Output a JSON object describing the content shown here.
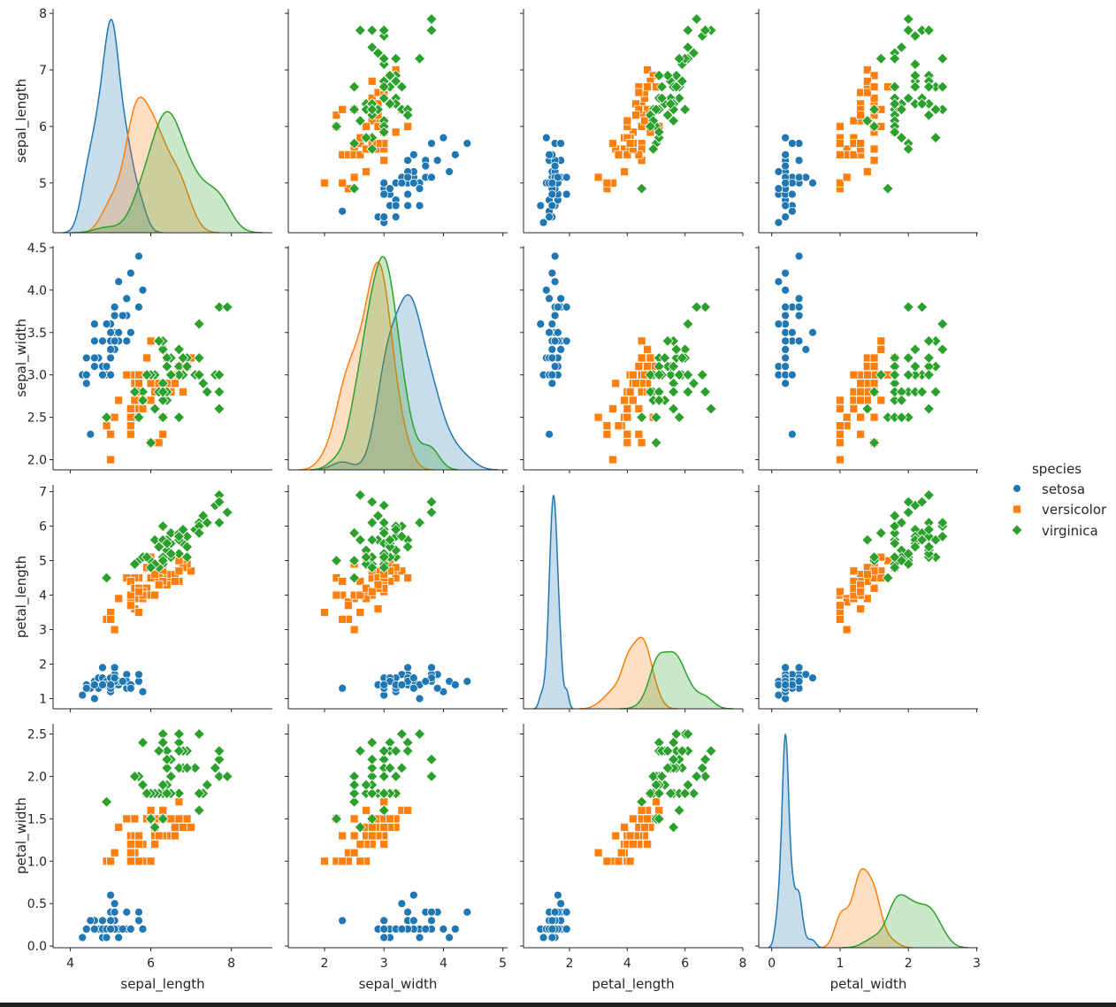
{
  "chart_data": {
    "type": "scatter",
    "kind": "pairplot",
    "diag_kind": "kde",
    "grid": false,
    "legend": {
      "title": "species",
      "placement": "right",
      "entries": [
        "setosa",
        "versicolor",
        "virginica"
      ]
    },
    "hue_colors": {
      "setosa": "#1f77b4",
      "versicolor": "#ff7f0e",
      "virginica": "#2ca02c"
    },
    "hue_markers": {
      "setosa": "circle",
      "versicolor": "square",
      "virginica": "diamond"
    },
    "variables": [
      "sepal_length",
      "sepal_width",
      "petal_length",
      "petal_width"
    ],
    "axes": {
      "sepal_length": {
        "label": "sepal_length",
        "xlim": [
          3.57,
          9.02
        ],
        "ylim": [
          4.12,
          8.08
        ],
        "xticks": [
          4,
          6,
          8
        ],
        "xtick_labels": [
          "4",
          "6",
          "8"
        ],
        "yticks": [
          5,
          6,
          7,
          8
        ],
        "ytick_labels": [
          "5",
          "6",
          "7",
          "8"
        ]
      },
      "sepal_width": {
        "label": "sepal_width",
        "xlim": [
          1.39,
          5.08
        ],
        "ylim": [
          1.88,
          4.52
        ],
        "xticks": [
          2,
          3,
          4,
          5
        ],
        "xtick_labels": [
          "2",
          "3",
          "4",
          "5"
        ],
        "yticks": [
          2.0,
          2.5,
          3.0,
          3.5,
          4.0,
          4.5
        ],
        "ytick_labels": [
          "2.0",
          "2.5",
          "3.0",
          "3.5",
          "4.0",
          "4.5"
        ]
      },
      "petal_length": {
        "label": "petal_length",
        "xlim": [
          0.41,
          8.0
        ],
        "ylim": [
          0.705,
          7.195
        ],
        "xticks": [
          2,
          4,
          6,
          8
        ],
        "xtick_labels": [
          "2",
          "4",
          "6",
          "8"
        ],
        "yticks": [
          1,
          2,
          3,
          4,
          5,
          6,
          7
        ],
        "ytick_labels": [
          "1",
          "2",
          "3",
          "4",
          "5",
          "6",
          "7"
        ]
      },
      "petal_width": {
        "label": "petal_width",
        "xlim": [
          -0.19,
          3.02
        ],
        "ylim": [
          -0.02,
          2.62
        ],
        "xticks": [
          0,
          1,
          2,
          3
        ],
        "xtick_labels": [
          "0",
          "1",
          "2",
          "3"
        ],
        "yticks": [
          0.0,
          0.5,
          1.0,
          1.5,
          2.0,
          2.5
        ],
        "ytick_labels": [
          "0.0",
          "0.5",
          "1.0",
          "1.5",
          "2.0",
          "2.5"
        ]
      }
    },
    "columns": [
      "sepal_length",
      "sepal_width",
      "petal_length",
      "petal_width"
    ],
    "data": {
      "setosa": [
        [
          5.1,
          3.5,
          1.4,
          0.2
        ],
        [
          4.9,
          3.0,
          1.4,
          0.2
        ],
        [
          4.7,
          3.2,
          1.3,
          0.2
        ],
        [
          4.6,
          3.1,
          1.5,
          0.2
        ],
        [
          5.0,
          3.6,
          1.4,
          0.2
        ],
        [
          5.4,
          3.9,
          1.7,
          0.4
        ],
        [
          4.6,
          3.4,
          1.4,
          0.3
        ],
        [
          5.0,
          3.4,
          1.5,
          0.2
        ],
        [
          4.4,
          2.9,
          1.4,
          0.2
        ],
        [
          4.9,
          3.1,
          1.5,
          0.1
        ],
        [
          5.4,
          3.7,
          1.5,
          0.2
        ],
        [
          4.8,
          3.4,
          1.6,
          0.2
        ],
        [
          4.8,
          3.0,
          1.4,
          0.1
        ],
        [
          4.3,
          3.0,
          1.1,
          0.1
        ],
        [
          5.8,
          4.0,
          1.2,
          0.2
        ],
        [
          5.7,
          4.4,
          1.5,
          0.4
        ],
        [
          5.4,
          3.9,
          1.3,
          0.4
        ],
        [
          5.1,
          3.5,
          1.4,
          0.3
        ],
        [
          5.7,
          3.8,
          1.7,
          0.3
        ],
        [
          5.1,
          3.8,
          1.5,
          0.3
        ],
        [
          5.4,
          3.4,
          1.7,
          0.2
        ],
        [
          5.1,
          3.7,
          1.5,
          0.4
        ],
        [
          4.6,
          3.6,
          1.0,
          0.2
        ],
        [
          5.1,
          3.3,
          1.7,
          0.5
        ],
        [
          4.8,
          3.4,
          1.9,
          0.2
        ],
        [
          5.0,
          3.0,
          1.6,
          0.2
        ],
        [
          5.0,
          3.4,
          1.6,
          0.4
        ],
        [
          5.2,
          3.5,
          1.5,
          0.2
        ],
        [
          5.2,
          3.4,
          1.4,
          0.2
        ],
        [
          4.7,
          3.2,
          1.6,
          0.2
        ],
        [
          4.8,
          3.1,
          1.6,
          0.2
        ],
        [
          5.4,
          3.4,
          1.5,
          0.4
        ],
        [
          5.2,
          4.1,
          1.5,
          0.1
        ],
        [
          5.5,
          4.2,
          1.4,
          0.2
        ],
        [
          4.9,
          3.1,
          1.5,
          0.2
        ],
        [
          5.0,
          3.2,
          1.2,
          0.2
        ],
        [
          5.5,
          3.5,
          1.3,
          0.2
        ],
        [
          4.9,
          3.6,
          1.4,
          0.1
        ],
        [
          4.4,
          3.0,
          1.3,
          0.2
        ],
        [
          5.1,
          3.4,
          1.5,
          0.2
        ],
        [
          5.0,
          3.5,
          1.3,
          0.3
        ],
        [
          4.5,
          2.3,
          1.3,
          0.3
        ],
        [
          4.4,
          3.2,
          1.3,
          0.2
        ],
        [
          5.0,
          3.5,
          1.6,
          0.6
        ],
        [
          5.1,
          3.8,
          1.9,
          0.4
        ],
        [
          4.8,
          3.0,
          1.4,
          0.3
        ],
        [
          5.1,
          3.8,
          1.6,
          0.2
        ],
        [
          4.6,
          3.2,
          1.4,
          0.2
        ],
        [
          5.3,
          3.7,
          1.5,
          0.2
        ],
        [
          5.0,
          3.3,
          1.4,
          0.2
        ]
      ],
      "versicolor": [
        [
          7.0,
          3.2,
          4.7,
          1.4
        ],
        [
          6.4,
          3.2,
          4.5,
          1.5
        ],
        [
          6.9,
          3.1,
          4.9,
          1.5
        ],
        [
          5.5,
          2.3,
          4.0,
          1.3
        ],
        [
          6.5,
          2.8,
          4.6,
          1.5
        ],
        [
          5.7,
          2.8,
          4.5,
          1.3
        ],
        [
          6.3,
          3.3,
          4.7,
          1.6
        ],
        [
          4.9,
          2.4,
          3.3,
          1.0
        ],
        [
          6.6,
          2.9,
          4.6,
          1.3
        ],
        [
          5.2,
          2.7,
          3.9,
          1.4
        ],
        [
          5.0,
          2.0,
          3.5,
          1.0
        ],
        [
          5.9,
          3.0,
          4.2,
          1.5
        ],
        [
          6.0,
          2.2,
          4.0,
          1.0
        ],
        [
          6.1,
          2.9,
          4.7,
          1.4
        ],
        [
          5.6,
          2.9,
          3.6,
          1.3
        ],
        [
          6.7,
          3.1,
          4.4,
          1.4
        ],
        [
          5.6,
          3.0,
          4.5,
          1.5
        ],
        [
          5.8,
          2.7,
          4.1,
          1.0
        ],
        [
          6.2,
          2.2,
          4.5,
          1.5
        ],
        [
          5.6,
          2.5,
          3.9,
          1.1
        ],
        [
          5.9,
          3.2,
          4.8,
          1.8
        ],
        [
          6.1,
          2.8,
          4.0,
          1.3
        ],
        [
          6.3,
          2.5,
          4.9,
          1.5
        ],
        [
          6.1,
          2.8,
          4.7,
          1.2
        ],
        [
          6.4,
          2.9,
          4.3,
          1.3
        ],
        [
          6.6,
          3.0,
          4.4,
          1.4
        ],
        [
          6.8,
          2.8,
          4.8,
          1.4
        ],
        [
          6.7,
          3.0,
          5.0,
          1.7
        ],
        [
          6.0,
          2.9,
          4.5,
          1.5
        ],
        [
          5.7,
          2.6,
          3.5,
          1.0
        ],
        [
          5.5,
          2.4,
          3.8,
          1.1
        ],
        [
          5.5,
          2.4,
          3.7,
          1.0
        ],
        [
          5.8,
          2.7,
          3.9,
          1.2
        ],
        [
          6.0,
          2.7,
          5.1,
          1.6
        ],
        [
          5.4,
          3.0,
          4.5,
          1.5
        ],
        [
          6.0,
          3.4,
          4.5,
          1.6
        ],
        [
          6.7,
          3.1,
          4.7,
          1.5
        ],
        [
          6.3,
          2.3,
          4.4,
          1.3
        ],
        [
          5.6,
          3.0,
          4.1,
          1.3
        ],
        [
          5.5,
          2.5,
          4.0,
          1.3
        ],
        [
          5.5,
          2.6,
          4.4,
          1.2
        ],
        [
          6.1,
          3.0,
          4.6,
          1.4
        ],
        [
          5.8,
          2.6,
          4.0,
          1.2
        ],
        [
          5.0,
          2.3,
          3.3,
          1.0
        ],
        [
          5.6,
          2.7,
          4.2,
          1.3
        ],
        [
          5.7,
          3.0,
          4.2,
          1.2
        ],
        [
          5.7,
          2.9,
          4.2,
          1.3
        ],
        [
          6.2,
          2.9,
          4.3,
          1.3
        ],
        [
          5.1,
          2.5,
          3.0,
          1.1
        ],
        [
          5.7,
          2.8,
          4.1,
          1.3
        ]
      ],
      "virginica": [
        [
          6.3,
          3.3,
          6.0,
          2.5
        ],
        [
          5.8,
          2.7,
          5.1,
          1.9
        ],
        [
          7.1,
          3.0,
          5.9,
          2.1
        ],
        [
          6.3,
          2.9,
          5.6,
          1.8
        ],
        [
          6.5,
          3.0,
          5.8,
          2.2
        ],
        [
          7.6,
          3.0,
          6.6,
          2.1
        ],
        [
          4.9,
          2.5,
          4.5,
          1.7
        ],
        [
          7.3,
          2.9,
          6.3,
          1.8
        ],
        [
          6.7,
          2.5,
          5.8,
          1.8
        ],
        [
          7.2,
          3.6,
          6.1,
          2.5
        ],
        [
          6.5,
          3.2,
          5.1,
          2.0
        ],
        [
          6.4,
          2.7,
          5.3,
          1.9
        ],
        [
          6.8,
          3.0,
          5.5,
          2.1
        ],
        [
          5.7,
          2.5,
          5.0,
          2.0
        ],
        [
          5.8,
          2.8,
          5.1,
          2.4
        ],
        [
          6.4,
          3.2,
          5.3,
          2.3
        ],
        [
          6.5,
          3.0,
          5.5,
          1.8
        ],
        [
          7.7,
          3.8,
          6.7,
          2.2
        ],
        [
          7.7,
          2.6,
          6.9,
          2.3
        ],
        [
          6.0,
          2.2,
          5.0,
          1.5
        ],
        [
          6.9,
          3.2,
          5.7,
          2.3
        ],
        [
          5.6,
          2.8,
          4.9,
          2.0
        ],
        [
          7.7,
          2.8,
          6.7,
          2.0
        ],
        [
          6.3,
          2.7,
          4.9,
          1.8
        ],
        [
          6.7,
          3.3,
          5.7,
          2.1
        ],
        [
          7.2,
          3.2,
          6.0,
          1.8
        ],
        [
          6.2,
          2.8,
          4.8,
          1.8
        ],
        [
          6.1,
          3.0,
          4.9,
          1.8
        ],
        [
          6.4,
          2.8,
          5.6,
          2.1
        ],
        [
          7.2,
          3.0,
          5.8,
          1.6
        ],
        [
          7.4,
          2.8,
          6.1,
          1.9
        ],
        [
          7.9,
          3.8,
          6.4,
          2.0
        ],
        [
          6.4,
          2.8,
          5.6,
          2.2
        ],
        [
          6.3,
          2.8,
          5.1,
          1.5
        ],
        [
          6.1,
          2.6,
          5.6,
          1.4
        ],
        [
          7.7,
          3.0,
          6.1,
          2.3
        ],
        [
          6.3,
          3.4,
          5.6,
          2.4
        ],
        [
          6.4,
          3.1,
          5.5,
          1.8
        ],
        [
          6.0,
          3.0,
          4.8,
          1.8
        ],
        [
          6.9,
          3.1,
          5.4,
          2.1
        ],
        [
          6.7,
          3.1,
          5.6,
          2.4
        ],
        [
          6.9,
          3.1,
          5.1,
          2.3
        ],
        [
          5.8,
          2.7,
          5.1,
          1.9
        ],
        [
          6.8,
          3.2,
          5.9,
          2.3
        ],
        [
          6.7,
          3.3,
          5.7,
          2.5
        ],
        [
          6.7,
          3.0,
          5.2,
          2.3
        ],
        [
          6.3,
          2.5,
          5.0,
          1.9
        ],
        [
          6.5,
          3.0,
          5.2,
          2.0
        ],
        [
          6.2,
          3.4,
          5.4,
          2.3
        ],
        [
          5.9,
          3.0,
          5.1,
          1.8
        ]
      ]
    }
  }
}
